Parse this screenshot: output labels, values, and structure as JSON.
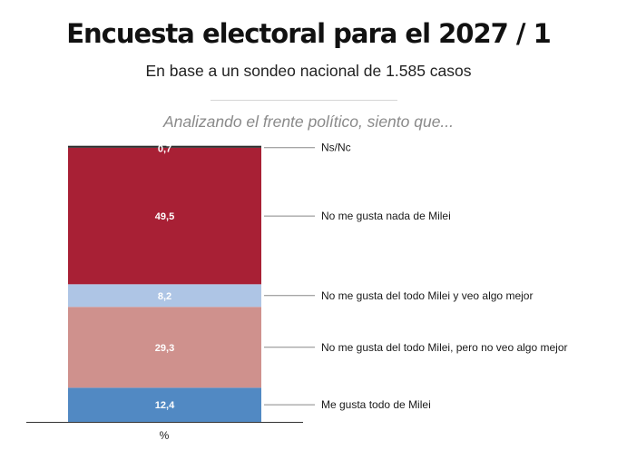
{
  "header": {
    "title": "Encuesta electoral para el 2027 / 1",
    "subtitle": "En base a un sondeo nacional de 1.585 casos",
    "question": "Analizando el frente político, siento que..."
  },
  "chart_data": {
    "type": "bar",
    "stacked": true,
    "orientation": "vertical",
    "axis_unit": "%",
    "total": 100,
    "segments": [
      {
        "label": "Me gusta todo de Milei",
        "value": 12.4,
        "value_label": "12,4",
        "color": "#5189c3"
      },
      {
        "label": "No me gusta del todo Milei, pero no veo algo mejor",
        "value": 29.3,
        "value_label": "29,3",
        "color": "#cf918d"
      },
      {
        "label": "No me gusta del todo Milei y veo algo mejor",
        "value": 8.2,
        "value_label": "8,2",
        "color": "#aec5e5"
      },
      {
        "label": "No me gusta nada de Milei",
        "value": 49.5,
        "value_label": "49,5",
        "color": "#a82035"
      },
      {
        "label": "Ns/Nc",
        "value": 0.7,
        "value_label": "0,7",
        "color": "#2b2b2b"
      }
    ]
  }
}
